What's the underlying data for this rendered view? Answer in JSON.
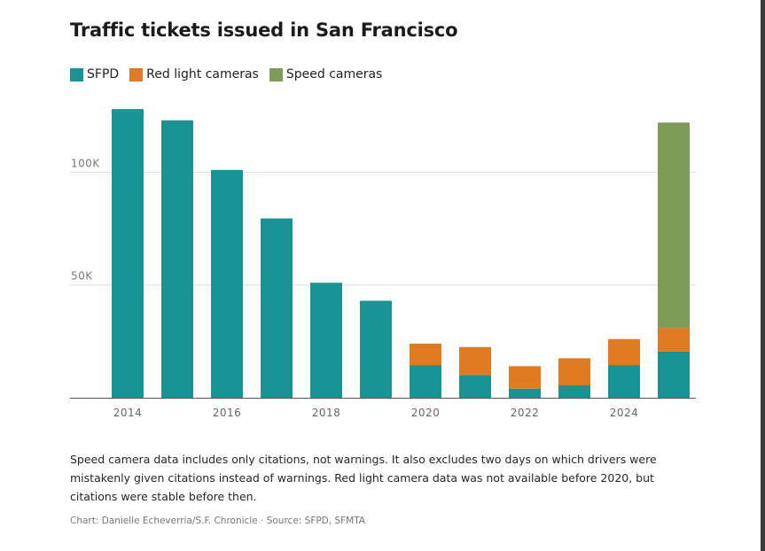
{
  "chart_data": {
    "type": "bar",
    "stacked": true,
    "title": "Traffic tickets issued in San Francisco",
    "categories": [
      "2014",
      "2015",
      "2016",
      "2017",
      "2018",
      "2019",
      "2020",
      "2021",
      "2022",
      "2023",
      "2024",
      "2025"
    ],
    "tick_labels": [
      "2014",
      "2016",
      "2018",
      "2020",
      "2022",
      "2024"
    ],
    "series": [
      {
        "name": "SFPD",
        "color": "#1a9396",
        "values": [
          128000,
          123000,
          101000,
          79500,
          51000,
          43000,
          14500,
          10000,
          4000,
          5500,
          14500,
          20500
        ]
      },
      {
        "name": "Red light cameras",
        "color": "#e07b24",
        "values": [
          0,
          0,
          0,
          0,
          0,
          0,
          9500,
          12500,
          10000,
          12000,
          11500,
          10500
        ]
      },
      {
        "name": "Speed cameras",
        "color": "#7e9b57",
        "values": [
          0,
          0,
          0,
          0,
          0,
          0,
          0,
          0,
          0,
          0,
          0,
          91000
        ]
      }
    ],
    "yticks": [
      {
        "value": 50000,
        "label": "50K"
      },
      {
        "value": 100000,
        "label": "100K"
      }
    ],
    "ylim": [
      0,
      130000
    ],
    "xlabel": "",
    "ylabel": "",
    "legend_position": "top-left"
  },
  "note": "Speed camera data includes only citations, not warnings. It also excludes two days on which drivers were mistakenly given citations instead of warnings. Red light camera data was not available before 2020, but citations were stable before then.",
  "credit": "Chart: Danielle Echeverria/S.F. Chronicle · Source: SFPD, SFMTA"
}
